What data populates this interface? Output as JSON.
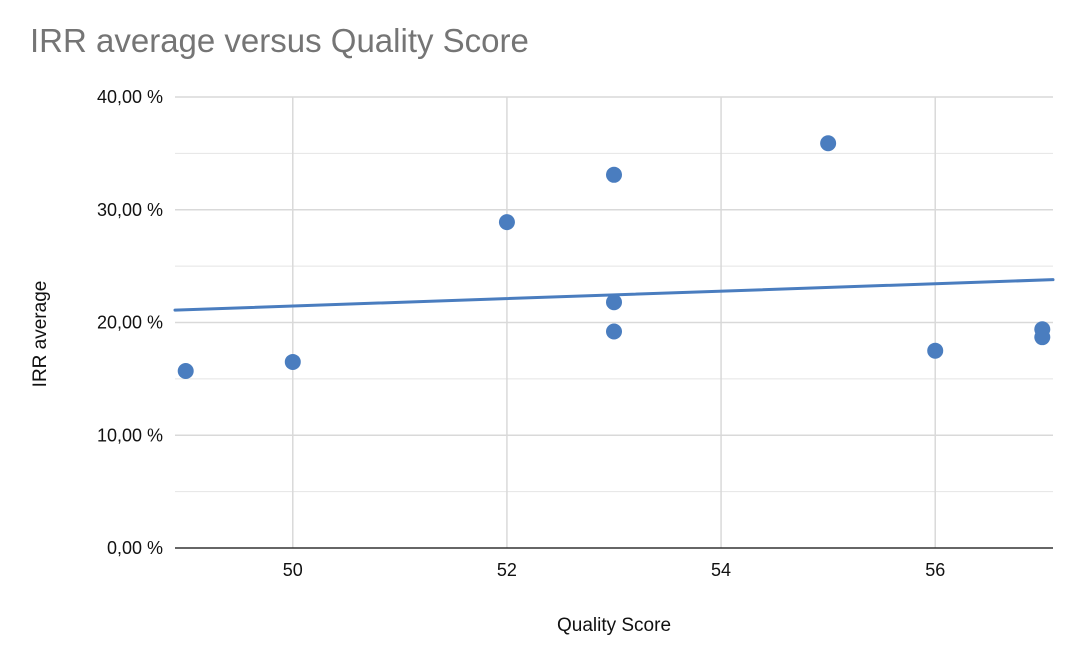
{
  "chart_data": {
    "type": "scatter",
    "title": "IRR average versus Quality Score",
    "xlabel": "Quality Score",
    "ylabel": "IRR average",
    "xlim": [
      48.9,
      57.1
    ],
    "ylim": [
      0,
      0.4
    ],
    "x_ticks": [
      50,
      52,
      54,
      56
    ],
    "x_tick_labels": [
      "50",
      "52",
      "54",
      "56"
    ],
    "y_ticks": [
      0,
      0.1,
      0.2,
      0.3,
      0.4
    ],
    "y_tick_labels": [
      "0,00 %",
      "10,00 %",
      "20,00 %",
      "30,00 %",
      "40,00 %"
    ],
    "y_minor_gridlines": true,
    "grid": true,
    "legend": "none",
    "points": [
      {
        "x": 49,
        "y": 0.157
      },
      {
        "x": 50,
        "y": 0.165
      },
      {
        "x": 52,
        "y": 0.289
      },
      {
        "x": 53,
        "y": 0.331
      },
      {
        "x": 53,
        "y": 0.218
      },
      {
        "x": 53,
        "y": 0.192
      },
      {
        "x": 55,
        "y": 0.359
      },
      {
        "x": 56,
        "y": 0.175
      },
      {
        "x": 57,
        "y": 0.194
      },
      {
        "x": 57,
        "y": 0.187
      }
    ],
    "trendline": {
      "type": "linear",
      "x": [
        48.9,
        57.1
      ],
      "y": [
        0.211,
        0.238
      ]
    },
    "colors": {
      "series": "#4a7dbf",
      "trendline": "#4a7dbf",
      "grid": "#d9d9d9",
      "baseline": "#333333",
      "title": "#757575"
    }
  }
}
